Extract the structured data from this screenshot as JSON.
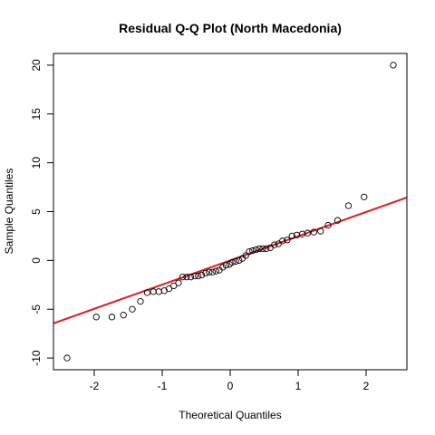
{
  "chart_data": {
    "type": "scatter",
    "title": "Residual Q-Q Plot (North Macedonia)",
    "xlabel": "Theoretical Quantiles",
    "ylabel": "Sample Quantiles",
    "xlim": [
      -2.6,
      2.6
    ],
    "ylim": [
      -11.2,
      21.2
    ],
    "x_ticks": [
      -2,
      -1,
      0,
      1,
      2
    ],
    "y_ticks": [
      -10,
      -5,
      0,
      5,
      10,
      15,
      20
    ],
    "grid": false,
    "legend": "none",
    "colors": {
      "points": "#000000",
      "reference_line": "#e41a1c"
    },
    "reference_line": {
      "intercept": 0,
      "slope": 2.48
    },
    "points": [
      {
        "x": -2.4,
        "y": -10.0
      },
      {
        "x": -1.97,
        "y": -5.8
      },
      {
        "x": -1.74,
        "y": -5.8
      },
      {
        "x": -1.57,
        "y": -5.6
      },
      {
        "x": -1.44,
        "y": -5.0
      },
      {
        "x": -1.32,
        "y": -4.2
      },
      {
        "x": -1.22,
        "y": -3.3
      },
      {
        "x": -1.13,
        "y": -3.2
      },
      {
        "x": -1.05,
        "y": -3.2
      },
      {
        "x": -0.97,
        "y": -3.1
      },
      {
        "x": -0.9,
        "y": -2.9
      },
      {
        "x": -0.83,
        "y": -2.6
      },
      {
        "x": -0.76,
        "y": -2.3
      },
      {
        "x": -0.7,
        "y": -1.7
      },
      {
        "x": -0.64,
        "y": -1.7
      },
      {
        "x": -0.58,
        "y": -1.7
      },
      {
        "x": -0.52,
        "y": -1.6
      },
      {
        "x": -0.47,
        "y": -1.6
      },
      {
        "x": -0.42,
        "y": -1.5
      },
      {
        "x": -0.36,
        "y": -1.3
      },
      {
        "x": -0.31,
        "y": -1.2
      },
      {
        "x": -0.26,
        "y": -1.2
      },
      {
        "x": -0.21,
        "y": -1.1
      },
      {
        "x": -0.16,
        "y": -1.0
      },
      {
        "x": -0.11,
        "y": -0.7
      },
      {
        "x": -0.06,
        "y": -0.5
      },
      {
        "x": -0.01,
        "y": -0.4
      },
      {
        "x": 0.03,
        "y": -0.2
      },
      {
        "x": 0.08,
        "y": -0.1
      },
      {
        "x": 0.13,
        "y": 0.0
      },
      {
        "x": 0.18,
        "y": 0.2
      },
      {
        "x": 0.23,
        "y": 0.5
      },
      {
        "x": 0.28,
        "y": 0.9
      },
      {
        "x": 0.33,
        "y": 1.0
      },
      {
        "x": 0.38,
        "y": 1.1
      },
      {
        "x": 0.43,
        "y": 1.2
      },
      {
        "x": 0.48,
        "y": 1.2
      },
      {
        "x": 0.53,
        "y": 1.2
      },
      {
        "x": 0.59,
        "y": 1.3
      },
      {
        "x": 0.65,
        "y": 1.6
      },
      {
        "x": 0.71,
        "y": 1.7
      },
      {
        "x": 0.77,
        "y": 2.0
      },
      {
        "x": 0.84,
        "y": 2.1
      },
      {
        "x": 0.91,
        "y": 2.5
      },
      {
        "x": 0.98,
        "y": 2.6
      },
      {
        "x": 1.06,
        "y": 2.7
      },
      {
        "x": 1.14,
        "y": 2.8
      },
      {
        "x": 1.23,
        "y": 2.9
      },
      {
        "x": 1.33,
        "y": 3.0
      },
      {
        "x": 1.44,
        "y": 3.6
      },
      {
        "x": 1.58,
        "y": 4.1
      },
      {
        "x": 1.74,
        "y": 5.6
      },
      {
        "x": 1.97,
        "y": 6.5
      },
      {
        "x": 2.4,
        "y": 20.0
      }
    ]
  }
}
